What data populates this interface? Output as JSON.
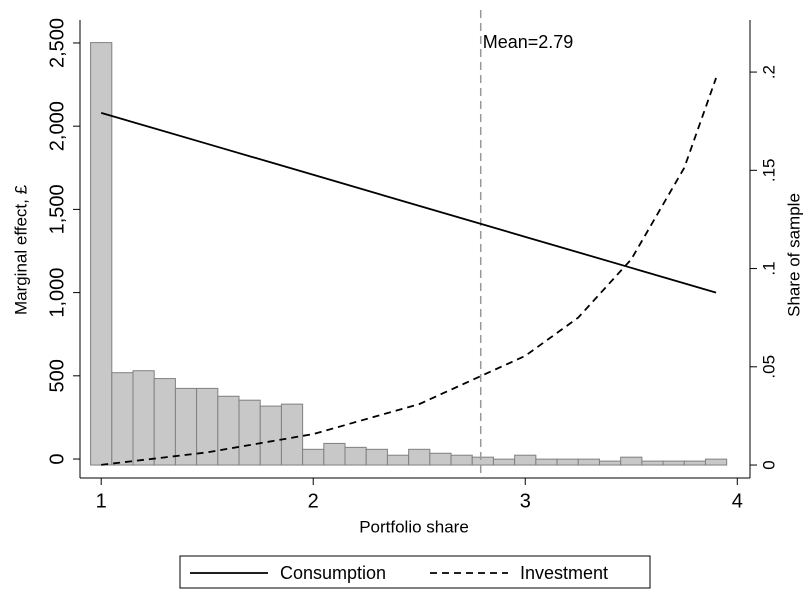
{
  "chart_data": {
    "type": "line",
    "xlabel": "Portfolio share",
    "ylabel": "Marginal effect, £",
    "y2label": "Share of sample",
    "xlim": [
      0.9,
      4.06
    ],
    "xticks": [
      1,
      2,
      3,
      4
    ],
    "ylim": [
      -114,
      2638
    ],
    "yticks": [
      0,
      500,
      {
        "value": 1000,
        "label": "1,000"
      },
      {
        "value": 1500,
        "label": "1,500"
      },
      {
        "value": 2000,
        "label": "2,000"
      },
      {
        "value": 2500,
        "label": "2,500"
      }
    ],
    "y2lim": [
      -0.0066,
      0.2265
    ],
    "y2ticks": [
      0,
      {
        "value": 0.05,
        "label": ".05"
      },
      {
        "value": 0.1,
        "label": ".1"
      },
      {
        "value": 0.15,
        "label": ".15"
      },
      {
        "value": 0.2,
        "label": ".2"
      }
    ],
    "series": [
      {
        "name": "Consumption",
        "color": "#000000",
        "dash": "none",
        "x": [
          1,
          1.5,
          2,
          2.5,
          3,
          3.5,
          3.9
        ],
        "values": [
          2080,
          1894,
          1708,
          1521,
          1335,
          1149,
          1000
        ]
      },
      {
        "name": "Investment",
        "color": "#000000",
        "dash": "7 5",
        "x": [
          1,
          1.5,
          2,
          2.5,
          3,
          3.25,
          3.5,
          3.75,
          3.9
        ],
        "values": [
          -35,
          40,
          150,
          330,
          620,
          850,
          1200,
          1750,
          2290
        ]
      }
    ],
    "histogram": {
      "axis": "y2",
      "color": "#c8c8c8",
      "bins": [
        0.95,
        1.05,
        1.15,
        1.25,
        1.35,
        1.45,
        1.55,
        1.65,
        1.75,
        1.85,
        1.95,
        2.05,
        2.15,
        2.25,
        2.35,
        2.45,
        2.55,
        2.65,
        2.75,
        2.85,
        2.95,
        3.05,
        3.15,
        3.25,
        3.35,
        3.45,
        3.55,
        3.65,
        3.75,
        3.85,
        3.95
      ],
      "values": [
        0.215,
        0.047,
        0.048,
        0.044,
        0.039,
        0.039,
        0.035,
        0.033,
        0.03,
        0.031,
        0.008,
        0.011,
        0.009,
        0.008,
        0.005,
        0.008,
        0.006,
        0.005,
        0.004,
        0.003,
        0.005,
        0.003,
        0.003,
        0.003,
        0.002,
        0.004,
        0.002,
        0.002,
        0.002,
        0.003
      ]
    },
    "mean_line": {
      "value": 2.79,
      "label": "Mean=2.79",
      "color": "#999999"
    }
  }
}
